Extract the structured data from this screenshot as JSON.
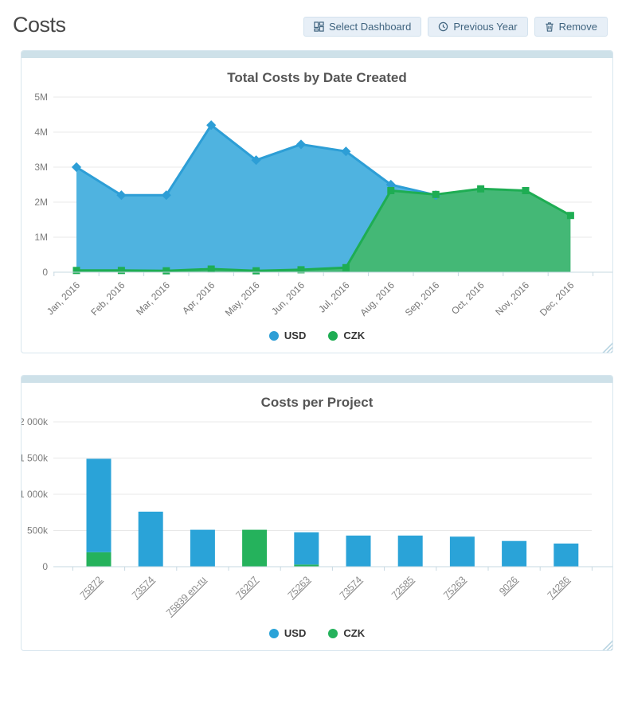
{
  "page": {
    "title": "Costs"
  },
  "toolbar": {
    "select_dashboard": "Select Dashboard",
    "previous_year": "Previous Year",
    "remove": "Remove"
  },
  "colors": {
    "panel_accent": "#cee1e9",
    "button_bg": "#e7eff7",
    "button_text": "#40647f",
    "usd_blue": "#2d9ed6",
    "czk_green": "#1ead53"
  },
  "chart_data": [
    {
      "type": "area",
      "title": "Total Costs by Date Created",
      "categories": [
        "Jan, 2016",
        "Feb, 2016",
        "Mar, 2016",
        "Apr, 2016",
        "May, 2016",
        "Jun, 2016",
        "Jul, 2016",
        "Aug, 2016",
        "Sep, 2016",
        "Oct, 2016",
        "Nov, 2016",
        "Dec, 2016"
      ],
      "unit": "M",
      "ylim": [
        0,
        5
      ],
      "yticks": [
        "5M",
        "4M",
        "3M",
        "2M",
        "1M",
        "0"
      ],
      "grid": true,
      "legend_position": "bottom",
      "series": [
        {
          "name": "USD",
          "marker": "diamond",
          "line_color": "#2d9ed6",
          "fill_color": "#4fb3e0",
          "values": [
            3.0,
            2.2,
            2.2,
            4.2,
            3.2,
            3.65,
            3.45,
            2.5,
            2.2,
            null,
            null,
            null
          ]
        },
        {
          "name": "CZK",
          "marker": "square",
          "line_color": "#1ead53",
          "fill_color": "#44b876",
          "values": [
            0.05,
            0.05,
            0.04,
            0.09,
            0.04,
            0.07,
            0.13,
            2.33,
            2.22,
            2.38,
            2.33,
            1.62
          ]
        }
      ]
    },
    {
      "type": "bar",
      "stacked": true,
      "title": "Costs per Project",
      "categories": [
        "75872",
        "73574",
        "75839 en-ru",
        "76207",
        "75263",
        "73574",
        "72585",
        "75263",
        "9026",
        "74286"
      ],
      "unit": "k",
      "ylim": [
        0,
        2000
      ],
      "yticks": [
        "2 000k",
        "1 500k",
        "1 000k",
        "500k",
        "0"
      ],
      "grid": true,
      "legend_position": "bottom",
      "category_links": true,
      "series": [
        {
          "name": "USD",
          "color": "#2aa3d8",
          "values": [
            1290,
            760,
            510,
            0,
            445,
            430,
            430,
            415,
            355,
            320
          ]
        },
        {
          "name": "CZK",
          "color": "#25b25c",
          "values": [
            200,
            0,
            0,
            510,
            30,
            0,
            0,
            0,
            0,
            0
          ]
        }
      ]
    }
  ]
}
